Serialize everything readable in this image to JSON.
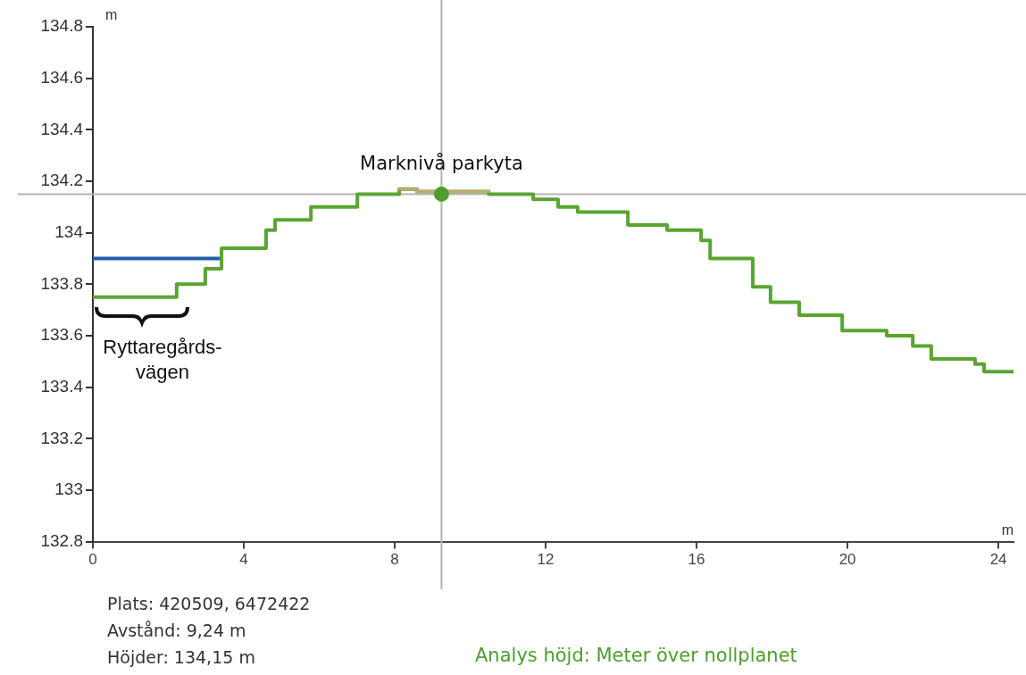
{
  "chart_data": {
    "type": "step",
    "xlabel": "m",
    "ylabel": "m",
    "xlim": [
      0,
      24.4
    ],
    "xticks": [
      0,
      4,
      8,
      12,
      16,
      20,
      24
    ],
    "ylim": [
      132.8,
      134.8
    ],
    "yticks": [
      132.8,
      133,
      133.2,
      133.4,
      133.6,
      133.8,
      134,
      134.2,
      134.4,
      134.6,
      134.8
    ],
    "grid": false,
    "legend": false,
    "series": [
      {
        "color": "#1f5fa8",
        "x": [
          0,
          3.41
        ],
        "values": [
          133.9,
          133.9
        ]
      },
      {
        "color": "#5aa532",
        "x": [
          0,
          2.22,
          2.98,
          3.41,
          4.59,
          4.83,
          5.78,
          7.01,
          8.12,
          8.59,
          10.49,
          11.67,
          12.33,
          12.85,
          14.18,
          15.22,
          16.12,
          16.36,
          17.49,
          17.96,
          18.72,
          19.86,
          21.04,
          21.73,
          22.22,
          23.38,
          23.62,
          24.4
        ],
        "values": [
          133.75,
          133.8,
          133.86,
          133.94,
          134.01,
          134.05,
          134.1,
          134.15,
          134.17,
          134.16,
          134.15,
          134.13,
          134.1,
          134.08,
          134.03,
          134.01,
          133.97,
          133.9,
          133.79,
          133.73,
          133.68,
          133.62,
          133.6,
          133.56,
          133.51,
          133.49,
          133.46,
          133.46
        ]
      },
      {
        "color": "#c4a878",
        "x": [
          8.12,
          8.59,
          10.49
        ],
        "values": [
          134.17,
          134.16,
          134.16
        ]
      },
      {
        "type": "scatter",
        "color": "#4e9e2e",
        "x": [
          9.24
        ],
        "values": [
          134.15
        ]
      }
    ],
    "ref_lines": [
      {
        "axis": "x",
        "value": 9.24,
        "color": "#b4b4b4"
      },
      {
        "axis": "y",
        "value": 134.15,
        "color": "#b4b4b4"
      }
    ],
    "annotations": [
      {
        "text": "Marknivå parkyta",
        "x": 9.24,
        "y": 134.15
      },
      "Ryttaregårds-vägen",
      "Plats: 420509, 6472422",
      "Avstånd: 9,24 m",
      "Höjder: 134,15 m",
      "Analys höjd: Meter över nollplanet"
    ]
  }
}
